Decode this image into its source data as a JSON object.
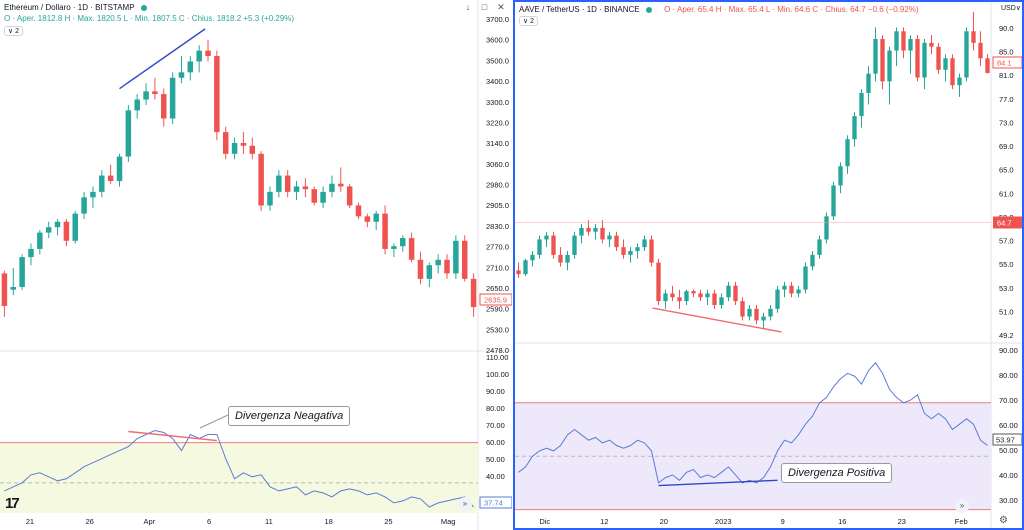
{
  "left": {
    "legend": {
      "symbol": "Ethereum / Dollaro · 1D · BITSTAMP",
      "ohlc": "O · Aper. 1812.8  H · Max. 1820.5  L · Min. 1807.5  C · Chius. 1818.2  +5.3 (+0.29%)",
      "indicator_badge": "2"
    },
    "last_price_label": "2635.9",
    "rsi_value_label": "37.74",
    "callout": "Divergenza Neagativa",
    "price_ticks": [
      "3700.0",
      "3600.0",
      "3500.0",
      "3400.0",
      "3300.0",
      "3220.0",
      "3140.0",
      "3060.0",
      "2980.0",
      "2905.0",
      "2830.0",
      "2770.0",
      "2710.0",
      "2650.0",
      "2590.0",
      "2530.0",
      "2478.0"
    ],
    "rsi_ticks": [
      "110.00",
      "100.00",
      "90.00",
      "80.00",
      "70.00",
      "60.00",
      "50.00",
      "40.00"
    ],
    "x_ticks": [
      "21",
      "26",
      "Apr",
      "6",
      "11",
      "18",
      "25",
      "Mag"
    ]
  },
  "right": {
    "legend": {
      "currency": "USD∨",
      "symbol": "AAVE / TetherUS · 1D · BINANCE",
      "ohlc": "O · Aper. 65.4  H · Max. 65.4  L · Min. 64.6  C · Chius. 64.7  −0.6 (−0.92%)",
      "indicator_badge": "2"
    },
    "currency_label": "USD∨",
    "top_price_label": "84.1",
    "current_price_label": "64.7",
    "rsi_value_label": "53.97",
    "callout": "Divergenza Positiva",
    "price_ticks": [
      "90.0",
      "85.0",
      "81.0",
      "77.0",
      "73.0",
      "69.0",
      "65.0",
      "61.0",
      "59.0",
      "57.0",
      "55.0",
      "53.0",
      "51.0",
      "49.2"
    ],
    "rsi_ticks": [
      "90.00",
      "80.00",
      "70.00",
      "60.00",
      "50.00",
      "40.00",
      "30.00"
    ],
    "x_ticks": [
      "Dic",
      "12",
      "20",
      "2023",
      "9",
      "16",
      "23",
      "Feb"
    ]
  },
  "colors": {
    "up": "#26a69a",
    "down": "#ef5350",
    "rsi_line": "#5b7bd5",
    "rsi_band_left": "#f5f9e0",
    "rsi_band_right": "#ede9fb",
    "bound_line": "#f07a7a",
    "divergence_neg": "#f06b6b",
    "divergence_pos": "#2f48c8",
    "eth_trendline": "#2f48c8",
    "aave_trendline": "#f06b6b"
  },
  "chart_data": [
    {
      "type": "candlestick",
      "title": "Ethereum / Dollaro · 1D · BITSTAMP",
      "ylim": [
        2478,
        3700
      ],
      "x_ticks": [
        "21",
        "26",
        "Apr",
        "6",
        "11",
        "18",
        "25",
        "Mag"
      ],
      "ohlc": [
        [
          2760,
          2770,
          2600,
          2640
        ],
        [
          2700,
          2780,
          2680,
          2710
        ],
        [
          2710,
          2830,
          2700,
          2820
        ],
        [
          2820,
          2870,
          2790,
          2850
        ],
        [
          2850,
          2920,
          2830,
          2910
        ],
        [
          2910,
          2950,
          2890,
          2930
        ],
        [
          2930,
          2960,
          2900,
          2950
        ],
        [
          2950,
          2960,
          2860,
          2880
        ],
        [
          2880,
          2990,
          2870,
          2980
        ],
        [
          2980,
          3060,
          2960,
          3040
        ],
        [
          3040,
          3080,
          3000,
          3060
        ],
        [
          3060,
          3140,
          3040,
          3120
        ],
        [
          3120,
          3160,
          3090,
          3100
        ],
        [
          3100,
          3200,
          3080,
          3190
        ],
        [
          3190,
          3380,
          3170,
          3360
        ],
        [
          3360,
          3420,
          3330,
          3400
        ],
        [
          3400,
          3460,
          3380,
          3430
        ],
        [
          3430,
          3480,
          3400,
          3420
        ],
        [
          3420,
          3440,
          3300,
          3330
        ],
        [
          3330,
          3500,
          3310,
          3480
        ],
        [
          3480,
          3560,
          3460,
          3500
        ],
        [
          3500,
          3560,
          3470,
          3540
        ],
        [
          3540,
          3600,
          3500,
          3580
        ],
        [
          3580,
          3620,
          3540,
          3560
        ],
        [
          3560,
          3580,
          3250,
          3280
        ],
        [
          3280,
          3300,
          3180,
          3200
        ],
        [
          3200,
          3260,
          3180,
          3240
        ],
        [
          3240,
          3280,
          3200,
          3230
        ],
        [
          3230,
          3260,
          3180,
          3200
        ],
        [
          3200,
          3210,
          2990,
          3010
        ],
        [
          3010,
          3080,
          2990,
          3060
        ],
        [
          3060,
          3140,
          3040,
          3120
        ],
        [
          3120,
          3140,
          3040,
          3060
        ],
        [
          3060,
          3100,
          3030,
          3080
        ],
        [
          3080,
          3110,
          3040,
          3070
        ],
        [
          3070,
          3080,
          3010,
          3020
        ],
        [
          3020,
          3080,
          3000,
          3060
        ],
        [
          3060,
          3120,
          3040,
          3090
        ],
        [
          3090,
          3150,
          3060,
          3080
        ],
        [
          3080,
          3090,
          3000,
          3010
        ],
        [
          3010,
          3020,
          2960,
          2970
        ],
        [
          2970,
          2980,
          2930,
          2950
        ],
        [
          2950,
          2990,
          2920,
          2980
        ],
        [
          2980,
          3010,
          2830,
          2850
        ],
        [
          2850,
          2870,
          2820,
          2860
        ],
        [
          2860,
          2900,
          2840,
          2890
        ],
        [
          2890,
          2910,
          2800,
          2810
        ],
        [
          2810,
          2840,
          2720,
          2740
        ],
        [
          2740,
          2800,
          2710,
          2790
        ],
        [
          2790,
          2830,
          2760,
          2810
        ],
        [
          2810,
          2830,
          2740,
          2760
        ],
        [
          2760,
          2900,
          2740,
          2880
        ],
        [
          2880,
          2900,
          2730,
          2740
        ],
        [
          2740,
          2760,
          2600,
          2636
        ]
      ]
    },
    {
      "type": "line",
      "title": "RSI",
      "ylim": [
        35,
        115
      ],
      "values": [
        46,
        48,
        50,
        54,
        55,
        53,
        51,
        52,
        55,
        58,
        60,
        62,
        64,
        66,
        68,
        72,
        74,
        76,
        75,
        72,
        66,
        74,
        72,
        74,
        74,
        62,
        52,
        55,
        53,
        54,
        48,
        46,
        47,
        48,
        44,
        46,
        45,
        43,
        46,
        47,
        46,
        44,
        45,
        43,
        40,
        41,
        43,
        42,
        38,
        40,
        41,
        42,
        43,
        38
      ],
      "bounds": [
        70,
        30
      ]
    },
    {
      "type": "candlestick",
      "title": "AAVE / TetherUS · 1D · BINANCE",
      "ylim": [
        49.2,
        92
      ],
      "x_ticks": [
        "Dic",
        "12",
        "20",
        "2023",
        "9",
        "16",
        "23",
        "Feb"
      ],
      "ohlc": [
        [
          58.5,
          59.5,
          57.5,
          58.0
        ],
        [
          58.0,
          60.0,
          57.8,
          59.8
        ],
        [
          59.8,
          61.0,
          59.0,
          60.5
        ],
        [
          60.5,
          63.0,
          60.0,
          62.5
        ],
        [
          62.5,
          63.5,
          61.5,
          63.0
        ],
        [
          63.0,
          63.5,
          60.0,
          60.5
        ],
        [
          60.5,
          61.5,
          59.0,
          59.5
        ],
        [
          59.5,
          61.0,
          58.5,
          60.5
        ],
        [
          60.5,
          63.5,
          60.0,
          63.0
        ],
        [
          63.0,
          64.5,
          62.0,
          64.0
        ],
        [
          64.0,
          65.0,
          63.0,
          63.5
        ],
        [
          63.5,
          64.5,
          62.5,
          64.0
        ],
        [
          64.0,
          65.0,
          62.0,
          62.5
        ],
        [
          62.5,
          63.5,
          61.5,
          63.0
        ],
        [
          63.0,
          63.5,
          61.0,
          61.5
        ],
        [
          61.5,
          62.5,
          60.0,
          60.5
        ],
        [
          60.5,
          61.5,
          59.5,
          61.0
        ],
        [
          61.0,
          62.0,
          60.0,
          61.5
        ],
        [
          61.5,
          63.0,
          61.0,
          62.5
        ],
        [
          62.5,
          63.0,
          59.0,
          59.5
        ],
        [
          59.5,
          60.0,
          54.0,
          54.5
        ],
        [
          54.5,
          56.0,
          53.5,
          55.5
        ],
        [
          55.5,
          56.5,
          54.5,
          55.0
        ],
        [
          55.0,
          56.0,
          53.5,
          54.5
        ],
        [
          54.5,
          56.0,
          54.0,
          55.8
        ],
        [
          55.8,
          56.0,
          55.0,
          55.5
        ],
        [
          55.5,
          56.0,
          54.5,
          55.0
        ],
        [
          55.0,
          56.0,
          54.0,
          55.5
        ],
        [
          55.5,
          56.0,
          53.5,
          54.0
        ],
        [
          54.0,
          55.5,
          53.5,
          55.0
        ],
        [
          55.0,
          57.0,
          54.5,
          56.5
        ],
        [
          56.5,
          57.0,
          54.0,
          54.5
        ],
        [
          54.5,
          55.0,
          52.0,
          52.5
        ],
        [
          52.5,
          54.0,
          52.0,
          53.5
        ],
        [
          53.5,
          54.0,
          51.5,
          52.0
        ],
        [
          52.0,
          53.0,
          51.0,
          52.5
        ],
        [
          52.5,
          54.0,
          52.0,
          53.5
        ],
        [
          53.5,
          56.5,
          53.0,
          56.0
        ],
        [
          56.0,
          57.0,
          55.0,
          56.5
        ],
        [
          56.5,
          57.0,
          55.0,
          55.5
        ],
        [
          55.5,
          56.5,
          55.0,
          56.0
        ],
        [
          56.0,
          59.5,
          55.5,
          59.0
        ],
        [
          59.0,
          61.0,
          58.5,
          60.5
        ],
        [
          60.5,
          63.0,
          60.0,
          62.5
        ],
        [
          62.5,
          66.0,
          62.0,
          65.5
        ],
        [
          65.5,
          70.0,
          65.0,
          69.5
        ],
        [
          69.5,
          72.5,
          68.5,
          72.0
        ],
        [
          72.0,
          76.0,
          71.0,
          75.5
        ],
        [
          75.5,
          79.0,
          74.5,
          78.5
        ],
        [
          78.5,
          82.0,
          77.0,
          81.5
        ],
        [
          81.5,
          85.0,
          80.0,
          84.0
        ],
        [
          84.0,
          90.0,
          83.0,
          88.5
        ],
        [
          88.5,
          89.0,
          82.0,
          83.0
        ],
        [
          83.0,
          87.5,
          80.0,
          87.0
        ],
        [
          87.0,
          90.0,
          85.0,
          89.5
        ],
        [
          89.5,
          90.0,
          86.0,
          87.0
        ],
        [
          87.0,
          89.0,
          84.0,
          88.5
        ],
        [
          88.5,
          89.0,
          83.0,
          83.5
        ],
        [
          83.5,
          88.5,
          82.0,
          88.0
        ],
        [
          88.0,
          89.0,
          86.5,
          87.5
        ],
        [
          87.5,
          88.0,
          84.0,
          84.5
        ],
        [
          84.5,
          86.5,
          83.0,
          86.0
        ],
        [
          86.0,
          86.5,
          82.0,
          82.5
        ],
        [
          82.5,
          84.0,
          81.0,
          83.5
        ],
        [
          83.5,
          90.0,
          83.0,
          89.5
        ],
        [
          89.5,
          92.0,
          87.0,
          88.0
        ],
        [
          88.0,
          89.5,
          85.0,
          86.0
        ],
        [
          86.0,
          86.5,
          84.0,
          84.1
        ]
      ]
    },
    {
      "type": "line",
      "title": "RSI",
      "ylim": [
        28,
        92
      ],
      "values": [
        44,
        46,
        50,
        52,
        53,
        52,
        54,
        58,
        60,
        58,
        56,
        57,
        55,
        56,
        54,
        53,
        54,
        56,
        55,
        52,
        40,
        42,
        43,
        41,
        44,
        45,
        42,
        43,
        42,
        44,
        46,
        43,
        40,
        41,
        40,
        42,
        46,
        52,
        56,
        55,
        58,
        62,
        65,
        70,
        72,
        76,
        79,
        81,
        80,
        77,
        82,
        85,
        81,
        75,
        72,
        70,
        71,
        73,
        66,
        64,
        66,
        64,
        60,
        62,
        64,
        62,
        56,
        54
      ],
      "bounds": [
        70,
        30
      ]
    }
  ]
}
